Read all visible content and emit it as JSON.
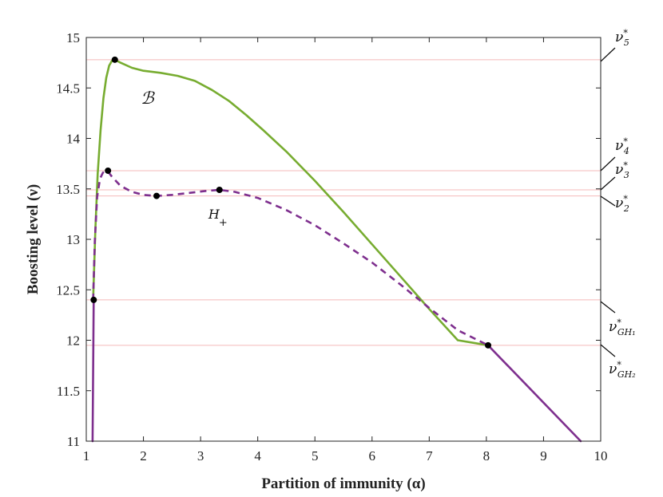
{
  "chart_data": {
    "type": "line",
    "title": "",
    "xlabel": "Partition of immunity (α)",
    "ylabel": "Boosting level (ν)",
    "xlim": [
      1,
      10
    ],
    "ylim": [
      11,
      15
    ],
    "xticks": [
      1,
      2,
      3,
      4,
      5,
      6,
      7,
      8,
      9,
      10
    ],
    "yticks": [
      11,
      11.5,
      12,
      12.5,
      13,
      13.5,
      14,
      14.5,
      15
    ],
    "grid": false,
    "colors": {
      "green": "#77ac30",
      "purple": "#7e2f8e",
      "reference": "#f4b9b9",
      "point": "#000000"
    },
    "series": [
      {
        "name": "green-branch",
        "style": "solid",
        "color": "#77ac30",
        "x": [
          1.12,
          1.16,
          1.2,
          1.25,
          1.3,
          1.35,
          1.4,
          1.45,
          1.5,
          1.6,
          1.8,
          2.0,
          2.3,
          2.6,
          2.9,
          3.2,
          3.5,
          3.8,
          4.1,
          4.5,
          5.0,
          5.5,
          6.0,
          6.5,
          7.0,
          7.5,
          8.03
        ],
        "y": [
          12.4,
          13.1,
          13.65,
          14.08,
          14.4,
          14.6,
          14.72,
          14.77,
          14.78,
          14.75,
          14.7,
          14.67,
          14.65,
          14.62,
          14.57,
          14.48,
          14.37,
          14.23,
          14.08,
          13.87,
          13.58,
          13.27,
          12.95,
          12.63,
          12.31,
          12.0,
          11.95
        ]
      },
      {
        "name": "purple-dashed-branch",
        "style": "dashed",
        "color": "#7e2f8e",
        "x": [
          1.12,
          1.15,
          1.19,
          1.24,
          1.29,
          1.34,
          1.38,
          1.45,
          1.6,
          1.8,
          2.0,
          2.23,
          2.5,
          2.8,
          3.1,
          3.33,
          3.6,
          4.0,
          4.5,
          5.0,
          5.5,
          6.0,
          6.5,
          7.0,
          7.5,
          8.03
        ],
        "y": [
          12.4,
          12.98,
          13.42,
          13.6,
          13.66,
          13.68,
          13.67,
          13.62,
          13.53,
          13.47,
          13.44,
          13.43,
          13.44,
          13.46,
          13.48,
          13.49,
          13.47,
          13.41,
          13.29,
          13.14,
          12.96,
          12.77,
          12.55,
          12.32,
          12.1,
          11.95
        ]
      },
      {
        "name": "purple-solid-left",
        "style": "solid",
        "color": "#7e2f8e",
        "x": [
          1.11,
          1.13
        ],
        "y": [
          11.0,
          12.4
        ]
      },
      {
        "name": "purple-solid-right",
        "style": "solid",
        "color": "#7e2f8e",
        "x": [
          8.03,
          9.65
        ],
        "y": [
          11.95,
          11.0
        ]
      }
    ],
    "points": [
      {
        "name": "point-nu5",
        "x": 1.5,
        "y": 14.78
      },
      {
        "name": "point-nu4",
        "x": 1.38,
        "y": 13.68
      },
      {
        "name": "point-nu2",
        "x": 2.23,
        "y": 13.43
      },
      {
        "name": "point-nu3",
        "x": 3.33,
        "y": 13.49
      },
      {
        "name": "point-gh1",
        "x": 1.13,
        "y": 12.4
      },
      {
        "name": "point-gh2",
        "x": 8.03,
        "y": 11.95
      }
    ],
    "reference_lines": [
      {
        "name": "ref-nu5",
        "y": 14.78,
        "label_main": "ν",
        "label_sup": "*",
        "label_sub": "5"
      },
      {
        "name": "ref-nu4",
        "y": 13.68,
        "label_main": "ν",
        "label_sup": "*",
        "label_sub": "4"
      },
      {
        "name": "ref-nu3",
        "y": 13.49,
        "label_main": "ν",
        "label_sup": "*",
        "label_sub": "3"
      },
      {
        "name": "ref-nu2",
        "y": 13.43,
        "label_main": "ν",
        "label_sup": "*",
        "label_sub": "2"
      },
      {
        "name": "ref-gh1",
        "y": 12.4,
        "label_main": "ν",
        "label_sup": "*",
        "label_sub": "GH₁"
      },
      {
        "name": "ref-gh2",
        "y": 11.95,
        "label_main": "ν",
        "label_sup": "*",
        "label_sub": "GH₂"
      }
    ],
    "annotations": [
      {
        "name": "region-label-B",
        "text": "ℬ",
        "x": 2.4,
        "y": 14.2
      },
      {
        "name": "hopf-label-main",
        "text": "H",
        "x": 3.5,
        "y": 13.27
      },
      {
        "name": "hopf-label-sub",
        "text": "+",
        "x": 3.5,
        "y": 13.27
      }
    ]
  }
}
